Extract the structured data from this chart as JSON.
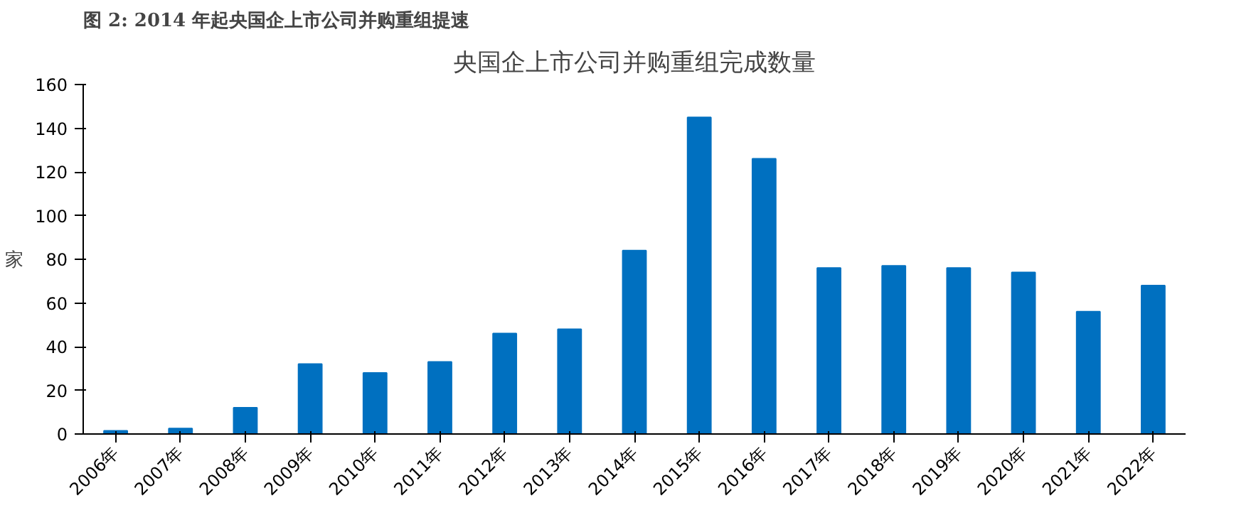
{
  "chart_data": {
    "type": "bar",
    "title": "图 2:  2014 年起央国企上市公司并购重组提速",
    "subtitle": "央国企上市公司并购重组完成数量",
    "ylabel": "家",
    "categories": [
      "2006年",
      "2007年",
      "2008年",
      "2009年",
      "2010年",
      "2011年",
      "2012年",
      "2013年",
      "2014年",
      "2015年",
      "2016年",
      "2017年",
      "2018年",
      "2019年",
      "2020年",
      "2021年",
      "2022年"
    ],
    "values": [
      1.5,
      2.5,
      12,
      32,
      28,
      33,
      46,
      48,
      84,
      145,
      126,
      76,
      77,
      76,
      74,
      56,
      68
    ],
    "color": "#0070c0",
    "ylim": [
      0,
      160
    ],
    "yticks": [
      0,
      20,
      40,
      60,
      80,
      100,
      120,
      140,
      160
    ],
    "grid": false
  }
}
